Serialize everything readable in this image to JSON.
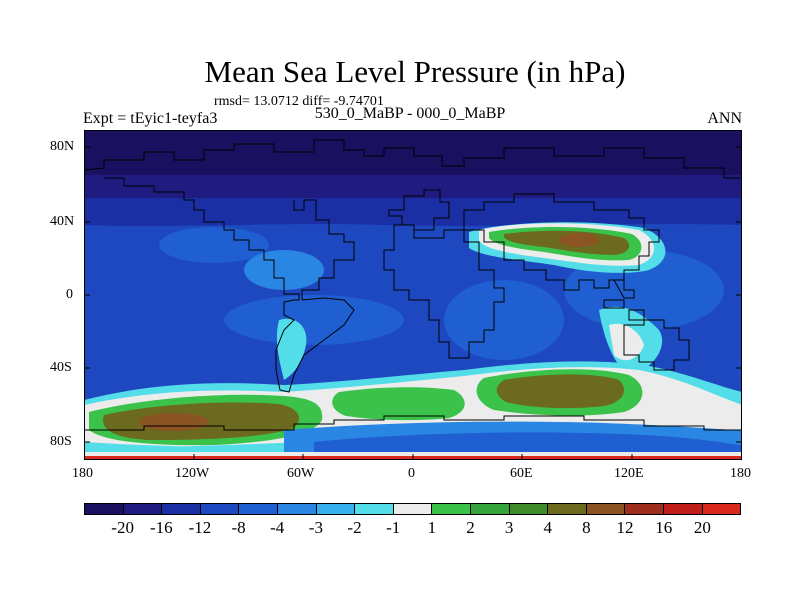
{
  "title": "Mean Sea Level Pressure (in hPa)",
  "stats": "rmsd= 13.0712 diff= -9.74701",
  "comparison": "530_0_MaBP - 000_0_MaBP",
  "experiment": "Expt = tEyic1-teyfa3",
  "season": "ANN",
  "lat_ticks": [
    "80N",
    "40N",
    "0",
    "40S",
    "80S"
  ],
  "lon_ticks": [
    "180",
    "120W",
    "60W",
    "0",
    "60E",
    "120E",
    "180"
  ],
  "colorbar": {
    "labels": [
      "-20",
      "-16",
      "-12",
      "-8",
      "-4",
      "-3",
      "-2",
      "-1",
      "1",
      "2",
      "3",
      "4",
      "8",
      "12",
      "16",
      "20"
    ],
    "colors": [
      "#1a1060",
      "#201b80",
      "#1a2fa3",
      "#1e48bf",
      "#1f5fd1",
      "#2a86e3",
      "#37b0ee",
      "#53dde8",
      "#ececec",
      "#3bc24a",
      "#36a43d",
      "#3f8a2a",
      "#6b6a1e",
      "#8a5522",
      "#9e2f1f",
      "#bf1e1a",
      "#d9281c"
    ]
  },
  "colors": {
    "high_polar": "#1a1060",
    "band_dark": "#1a2fa3",
    "band_mid": "#1f5fd1",
    "band_light": "#37b0ee",
    "positive_green": "#3bc24a",
    "positive_olive": "#6b6a1e",
    "positive_brown": "#8a5522"
  }
}
